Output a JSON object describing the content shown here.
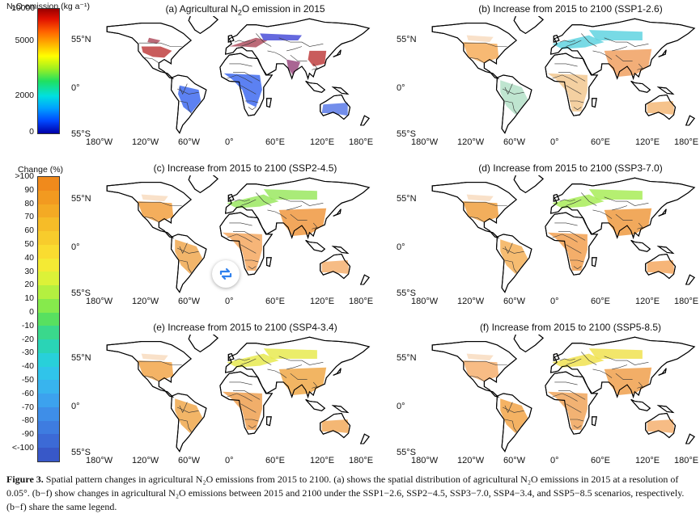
{
  "colorbar_emission": {
    "title": "N₂O emission (kg a⁻¹)",
    "ticks": [
      "10000",
      "5000",
      "2000",
      "0"
    ]
  },
  "colorbar_change": {
    "title": "Change (%)",
    "ticks": [
      ">100",
      "90",
      "80",
      "70",
      "60",
      "50",
      "40",
      "30",
      "20",
      "10",
      "0",
      "-10",
      "-20",
      "-30",
      "-40",
      "-50",
      "-60",
      "-70",
      "-80",
      "-90",
      "<-100"
    ],
    "colors": [
      "#f08a1c",
      "#f29a20",
      "#f4aa24",
      "#f6bc28",
      "#f8cc2c",
      "#fadc30",
      "#f4ea34",
      "#dcf238",
      "#b4f040",
      "#86ea4c",
      "#58e060",
      "#3ad88c",
      "#2ad4b6",
      "#28d0da",
      "#30c4ea",
      "#38b4ee",
      "#3ca2ee",
      "#3e8ee8",
      "#3e7ce0",
      "#3c6ad6",
      "#3858c8"
    ]
  },
  "panels": [
    {
      "title_pre": "(a) Agricultural N",
      "title_sub": "2",
      "title_post": "O emission in 2015"
    },
    {
      "title_pre": "(b) Increase from 2015 to 2100 (SSP1-2.6)",
      "title_sub": "",
      "title_post": ""
    },
    {
      "title_pre": "(c) Increase from 2015 to 2100 (SSP2-4.5)",
      "title_sub": "",
      "title_post": ""
    },
    {
      "title_pre": "(d) Increase from 2015 to 2100 (SSP3-7.0)",
      "title_sub": "",
      "title_post": ""
    },
    {
      "title_pre": "(e) Increase from 2015 to 2100 (SSP4-3.4)",
      "title_sub": "",
      "title_post": ""
    },
    {
      "title_pre": "(f) Increase from 2015 to 2100 (SSP5-8.5)",
      "title_sub": "",
      "title_post": ""
    }
  ],
  "axes": {
    "lat_labels": [
      "55°N",
      "0°",
      "55°S"
    ],
    "lon_labels": [
      "180°W",
      "120°W",
      "60°W",
      "0°",
      "60°E",
      "120°E",
      "180°E"
    ]
  },
  "caption": {
    "label": "Figure 3.",
    "text": " Spatial pattern changes in agricultural N₂O emissions from 2015 to 2100. (a) shows the spatial distribution of agricultural N₂O emissions in 2015 at a resolution of 0.05°. (b−f) show changes in agricultural N₂O emissions between 2015 and 2100 under the SSP1−2.6, SSP2−4.5, SSP3−7.0, SSP4−3.4, and SSP5−8.5 scenarios, respectively. (b−f) share the same legend."
  }
}
